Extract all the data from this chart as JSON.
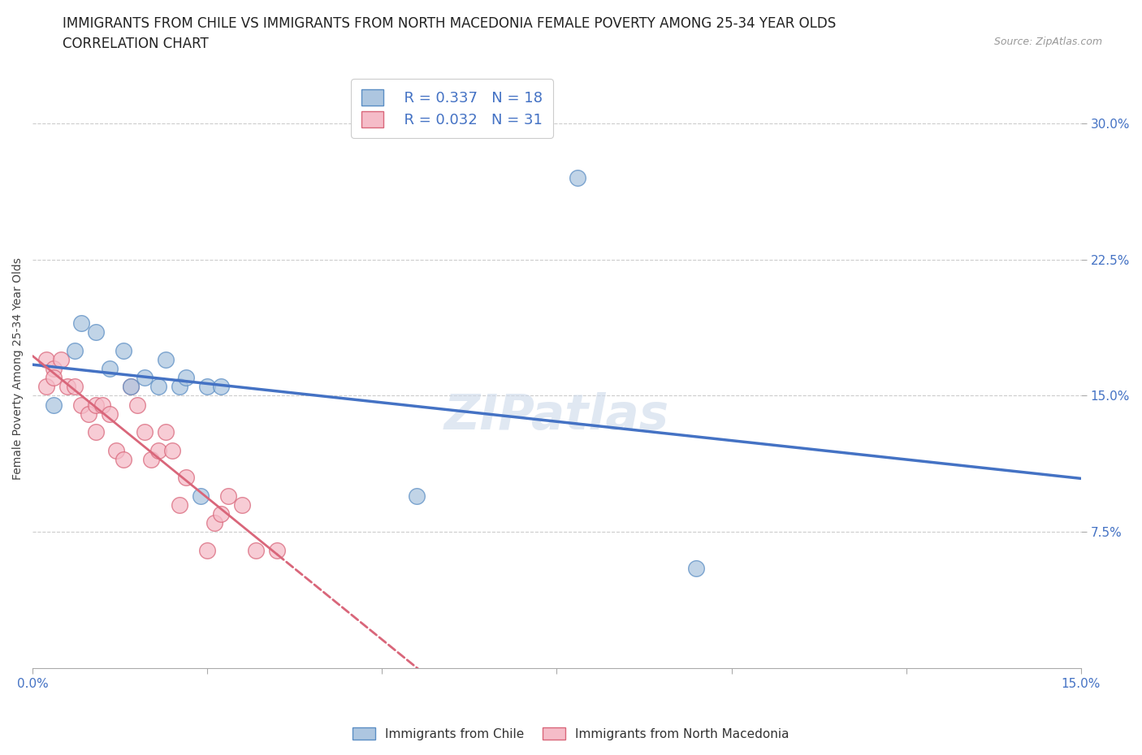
{
  "title_line1": "IMMIGRANTS FROM CHILE VS IMMIGRANTS FROM NORTH MACEDONIA FEMALE POVERTY AMONG 25-34 YEAR OLDS",
  "title_line2": "CORRELATION CHART",
  "source_text": "Source: ZipAtlas.com",
  "ylabel": "Female Poverty Among 25-34 Year Olds",
  "xlim": [
    0.0,
    0.15
  ],
  "ylim": [
    0.0,
    0.33
  ],
  "xticks": [
    0.0,
    0.025,
    0.05,
    0.075,
    0.1,
    0.125,
    0.15
  ],
  "xtick_labels_show": [
    "0.0%",
    "",
    "",
    "",
    "",
    "",
    "15.0%"
  ],
  "yticks": [
    0.075,
    0.15,
    0.225,
    0.3
  ],
  "ytick_labels": [
    "7.5%",
    "15.0%",
    "22.5%",
    "30.0%"
  ],
  "chile_R": 0.337,
  "chile_N": 18,
  "macedonia_R": 0.032,
  "macedonia_N": 31,
  "chile_color": "#adc6e0",
  "chile_edge_color": "#5b8ec4",
  "macedonia_color": "#f5bcc8",
  "macedonia_edge_color": "#d9667a",
  "trend_chile_color": "#4472c4",
  "trend_macedonia_color": "#d9667a",
  "legend_label_chile": "Immigrants from Chile",
  "legend_label_macedonia": "Immigrants from North Macedonia",
  "chile_x": [
    0.003,
    0.006,
    0.007,
    0.009,
    0.011,
    0.013,
    0.014,
    0.016,
    0.018,
    0.019,
    0.021,
    0.022,
    0.024,
    0.025,
    0.027,
    0.055,
    0.078,
    0.095
  ],
  "chile_y": [
    0.145,
    0.175,
    0.19,
    0.185,
    0.165,
    0.175,
    0.155,
    0.16,
    0.155,
    0.17,
    0.155,
    0.16,
    0.095,
    0.155,
    0.155,
    0.095,
    0.27,
    0.055
  ],
  "macedonia_x": [
    0.002,
    0.002,
    0.003,
    0.003,
    0.004,
    0.005,
    0.006,
    0.007,
    0.008,
    0.009,
    0.009,
    0.01,
    0.011,
    0.012,
    0.013,
    0.014,
    0.015,
    0.016,
    0.017,
    0.018,
    0.019,
    0.02,
    0.021,
    0.022,
    0.025,
    0.026,
    0.027,
    0.028,
    0.03,
    0.032,
    0.035
  ],
  "macedonia_y": [
    0.155,
    0.17,
    0.165,
    0.16,
    0.17,
    0.155,
    0.155,
    0.145,
    0.14,
    0.13,
    0.145,
    0.145,
    0.14,
    0.12,
    0.115,
    0.155,
    0.145,
    0.13,
    0.115,
    0.12,
    0.13,
    0.12,
    0.09,
    0.105,
    0.065,
    0.08,
    0.085,
    0.095,
    0.09,
    0.065,
    0.065
  ],
  "watermark_text": "ZIPatlas",
  "background_color": "#ffffff",
  "grid_color": "#cccccc",
  "title_fontsize": 12,
  "axis_label_fontsize": 10,
  "tick_fontsize": 11,
  "legend_fontsize": 13
}
